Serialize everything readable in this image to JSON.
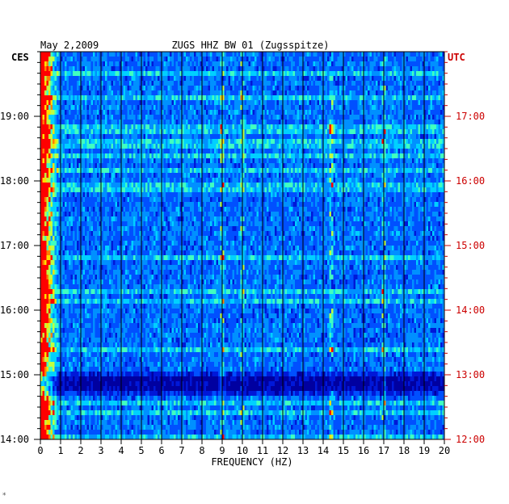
{
  "chart_data": {
    "type": "heatmap",
    "title": "ZUGS HHZ BW 01 (Zugsspitze)",
    "date": "May 2,2009",
    "xlabel": "FREQUENCY (HZ)",
    "left_axis_label": "CES",
    "right_axis_label": "UTC",
    "xlim": [
      0,
      20
    ],
    "x_ticks": [
      "0",
      "1",
      "2",
      "3",
      "4",
      "5",
      "6",
      "7",
      "8",
      "9",
      "10",
      "11",
      "12",
      "13",
      "14",
      "15",
      "16",
      "17",
      "18",
      "19",
      "20"
    ],
    "y_range_utc": [
      "12:00",
      "18:00"
    ],
    "left_ticks": [
      "14:00",
      "15:00",
      "16:00",
      "17:00",
      "18:00",
      "19:00"
    ],
    "right_ticks": [
      "12:00",
      "13:00",
      "14:00",
      "15:00",
      "16:00",
      "17:00"
    ],
    "colors": {
      "low": "#0000c8",
      "mid": "#00c8ff",
      "high": "#ffff00",
      "peak": "#ff0000",
      "right_axis": "#cc0000"
    },
    "features": [
      {
        "freq_hz": 0.2,
        "desc": "strong low-frequency energy"
      },
      {
        "freq_hz": 9.0,
        "desc": "tonal line"
      },
      {
        "freq_hz": 10.0,
        "desc": "tonal line"
      },
      {
        "freq_hz": 14.4,
        "desc": "tonal line"
      },
      {
        "freq_hz": 17.0,
        "desc": "tonal line"
      }
    ]
  },
  "footer_mark": "*"
}
